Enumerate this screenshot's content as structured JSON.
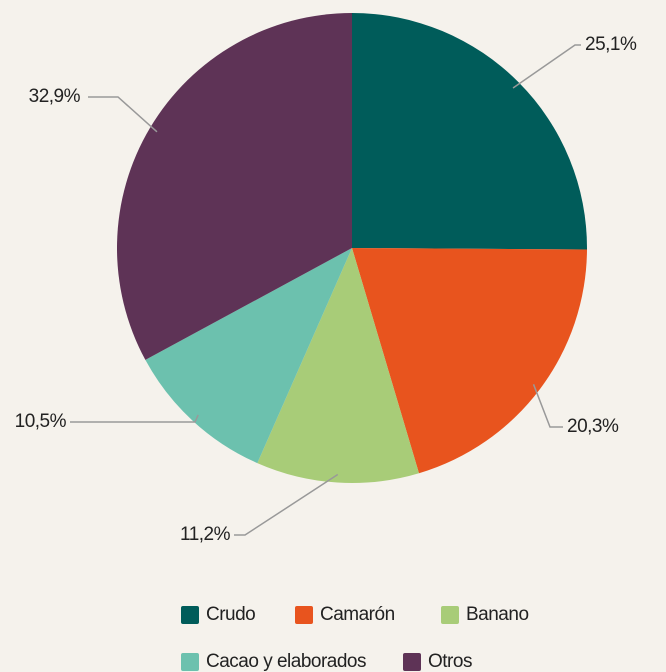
{
  "chart_data": {
    "type": "pie",
    "categories": [
      "Crudo",
      "Camarón",
      "Banano",
      "Cacao y elaborados",
      "Otros"
    ],
    "values": [
      25.1,
      20.3,
      11.2,
      10.5,
      32.9
    ],
    "value_labels": [
      "25,1%",
      "20,3%",
      "11,2%",
      "10,5%",
      "32,9%"
    ],
    "colors": [
      "#005c5a",
      "#e8541e",
      "#a8cc78",
      "#6cc1ae",
      "#5e3356"
    ],
    "legend": "bottom"
  }
}
